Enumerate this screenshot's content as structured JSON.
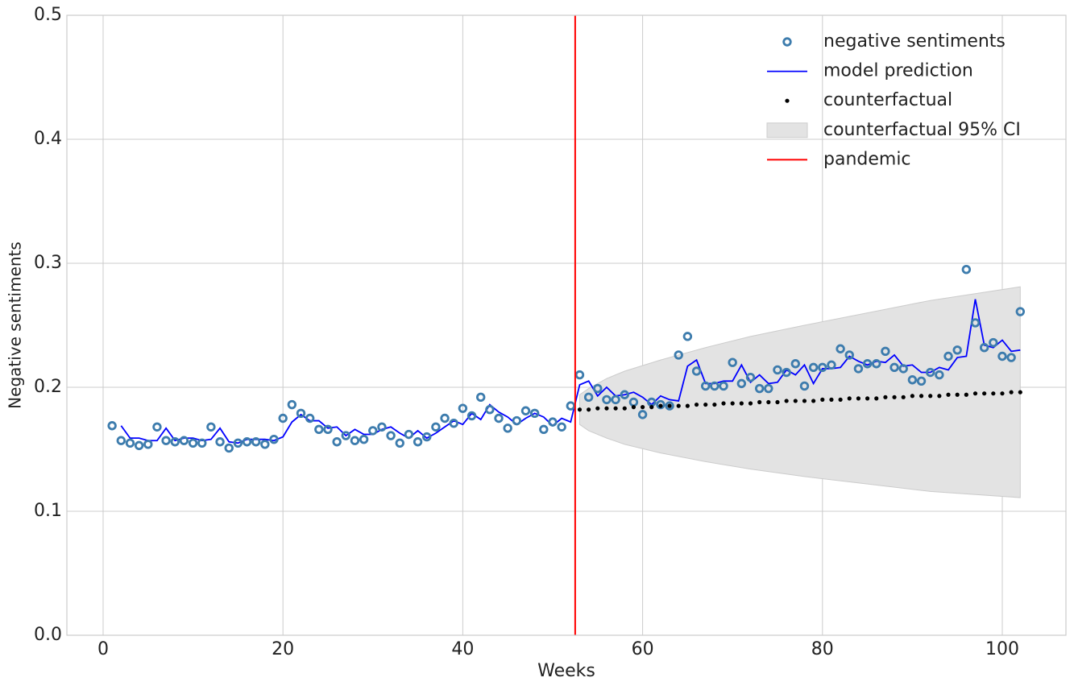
{
  "chart_data": {
    "type": "line",
    "xlabel": "Weeks",
    "ylabel": "Negative sentiments",
    "xlim": [
      -4.03,
      107.08
    ],
    "ylim": [
      0,
      0.5
    ],
    "xticks": [
      0,
      20,
      40,
      60,
      80,
      100
    ],
    "yticks": [
      {
        "value": 0,
        "label": "0.0"
      },
      0.1,
      0.2,
      0.3,
      0.4,
      0.5
    ],
    "grid": true,
    "legend": "upper right",
    "series": [
      {
        "name": "negative sentiments",
        "type": "scatter",
        "color": "#3d7cad",
        "x": [
          1,
          2,
          3,
          4,
          5,
          6,
          7,
          8,
          9,
          10,
          11,
          12,
          13,
          14,
          15,
          16,
          17,
          18,
          19,
          20,
          21,
          22,
          23,
          24,
          25,
          26,
          27,
          28,
          29,
          30,
          31,
          32,
          33,
          34,
          35,
          36,
          37,
          38,
          39,
          40,
          41,
          42,
          43,
          44,
          45,
          46,
          47,
          48,
          49,
          50,
          51,
          52,
          53,
          54,
          55,
          56,
          57,
          58,
          59,
          60,
          61,
          62,
          63,
          64,
          65,
          66,
          67,
          68,
          69,
          70,
          71,
          72,
          73,
          74,
          75,
          76,
          77,
          78,
          79,
          80,
          81,
          82,
          83,
          84,
          85,
          86,
          87,
          88,
          89,
          90,
          91,
          92,
          93,
          94,
          95,
          96,
          97,
          98,
          99,
          100,
          101,
          102
        ],
        "values": [
          0.169,
          0.157,
          0.155,
          0.153,
          0.154,
          0.168,
          0.157,
          0.156,
          0.157,
          0.155,
          0.155,
          0.168,
          0.156,
          0.151,
          0.155,
          0.156,
          0.156,
          0.154,
          0.158,
          0.175,
          0.186,
          0.179,
          0.175,
          0.166,
          0.166,
          0.156,
          0.161,
          0.157,
          0.158,
          0.165,
          0.168,
          0.161,
          0.155,
          0.162,
          0.156,
          0.16,
          0.168,
          0.175,
          0.171,
          0.183,
          0.177,
          0.192,
          0.182,
          0.175,
          0.167,
          0.173,
          0.181,
          0.179,
          0.166,
          0.172,
          0.168,
          0.185,
          0.21,
          0.192,
          0.199,
          0.19,
          0.19,
          0.194,
          0.188,
          0.178,
          0.188,
          0.186,
          0.185,
          0.226,
          0.241,
          0.213,
          0.201,
          0.201,
          0.201,
          0.22,
          0.203,
          0.208,
          0.199,
          0.199,
          0.214,
          0.212,
          0.219,
          0.201,
          0.216,
          0.216,
          0.218,
          0.231,
          0.226,
          0.215,
          0.219,
          0.219,
          0.229,
          0.216,
          0.215,
          0.206,
          0.205,
          0.212,
          0.21,
          0.225,
          0.23,
          0.295,
          0.252,
          0.232,
          0.236,
          0.225,
          0.224,
          0.261
        ]
      },
      {
        "name": "model prediction",
        "type": "line",
        "color": "#0000ff",
        "x": [
          2,
          3,
          4,
          5,
          6,
          7,
          8,
          9,
          10,
          11,
          12,
          13,
          14,
          15,
          16,
          17,
          18,
          19,
          20,
          21,
          22,
          23,
          24,
          25,
          26,
          27,
          28,
          29,
          30,
          31,
          32,
          33,
          34,
          35,
          36,
          37,
          38,
          39,
          40,
          41,
          42,
          43,
          44,
          45,
          46,
          47,
          48,
          49,
          50,
          51,
          52,
          53,
          54,
          55,
          56,
          57,
          58,
          59,
          60,
          61,
          62,
          63,
          64,
          65,
          66,
          67,
          68,
          69,
          70,
          71,
          72,
          73,
          74,
          75,
          76,
          77,
          78,
          79,
          80,
          81,
          82,
          83,
          84,
          85,
          86,
          87,
          88,
          89,
          90,
          91,
          92,
          93,
          94,
          95,
          96,
          97,
          98,
          99,
          100,
          101,
          102
        ],
        "values": [
          0.169,
          0.159,
          0.159,
          0.157,
          0.157,
          0.167,
          0.157,
          0.159,
          0.159,
          0.157,
          0.158,
          0.167,
          0.156,
          0.155,
          0.158,
          0.158,
          0.158,
          0.157,
          0.16,
          0.172,
          0.178,
          0.173,
          0.173,
          0.167,
          0.168,
          0.161,
          0.166,
          0.162,
          0.162,
          0.166,
          0.168,
          0.163,
          0.159,
          0.165,
          0.159,
          0.163,
          0.168,
          0.173,
          0.17,
          0.179,
          0.174,
          0.186,
          0.18,
          0.176,
          0.17,
          0.175,
          0.179,
          0.176,
          0.169,
          0.175,
          0.172,
          0.202,
          0.205,
          0.193,
          0.2,
          0.193,
          0.194,
          0.196,
          0.192,
          0.186,
          0.193,
          0.19,
          0.189,
          0.217,
          0.222,
          0.203,
          0.203,
          0.205,
          0.205,
          0.218,
          0.204,
          0.21,
          0.203,
          0.204,
          0.214,
          0.21,
          0.218,
          0.203,
          0.215,
          0.215,
          0.216,
          0.225,
          0.221,
          0.218,
          0.221,
          0.22,
          0.226,
          0.217,
          0.218,
          0.212,
          0.212,
          0.216,
          0.214,
          0.224,
          0.225,
          0.271,
          0.234,
          0.232,
          0.238,
          0.229,
          0.23
        ]
      },
      {
        "name": "counterfactual",
        "type": "dots",
        "color": "#000000",
        "x": [
          53,
          54,
          55,
          56,
          57,
          58,
          59,
          60,
          61,
          62,
          63,
          64,
          65,
          66,
          67,
          68,
          69,
          70,
          71,
          72,
          73,
          74,
          75,
          76,
          77,
          78,
          79,
          80,
          81,
          82,
          83,
          84,
          85,
          86,
          87,
          88,
          89,
          90,
          91,
          92,
          93,
          94,
          95,
          96,
          97,
          98,
          99,
          100,
          101,
          102
        ],
        "values": [
          0.182,
          0.182,
          0.183,
          0.183,
          0.183,
          0.183,
          0.184,
          0.184,
          0.184,
          0.185,
          0.185,
          0.185,
          0.185,
          0.186,
          0.186,
          0.186,
          0.187,
          0.187,
          0.187,
          0.187,
          0.188,
          0.188,
          0.188,
          0.189,
          0.189,
          0.189,
          0.189,
          0.19,
          0.19,
          0.19,
          0.191,
          0.191,
          0.191,
          0.191,
          0.192,
          0.192,
          0.192,
          0.193,
          0.193,
          0.193,
          0.193,
          0.194,
          0.194,
          0.194,
          0.195,
          0.195,
          0.195,
          0.195,
          0.196,
          0.196
        ]
      },
      {
        "name": "counterfactual 95% CI",
        "type": "band",
        "color": "#e3e3e3",
        "x": [
          53,
          54,
          56,
          58,
          62,
          67,
          72,
          78,
          85,
          92,
          102
        ],
        "lower": [
          0.17,
          0.165,
          0.159,
          0.154,
          0.147,
          0.14,
          0.134,
          0.128,
          0.122,
          0.116,
          0.111
        ],
        "upper": [
          0.194,
          0.199,
          0.207,
          0.213,
          0.222,
          0.232,
          0.241,
          0.25,
          0.26,
          0.27,
          0.281
        ]
      },
      {
        "name": "pandemic",
        "type": "vline",
        "color": "#ff0000",
        "x": 52.5
      }
    ]
  }
}
